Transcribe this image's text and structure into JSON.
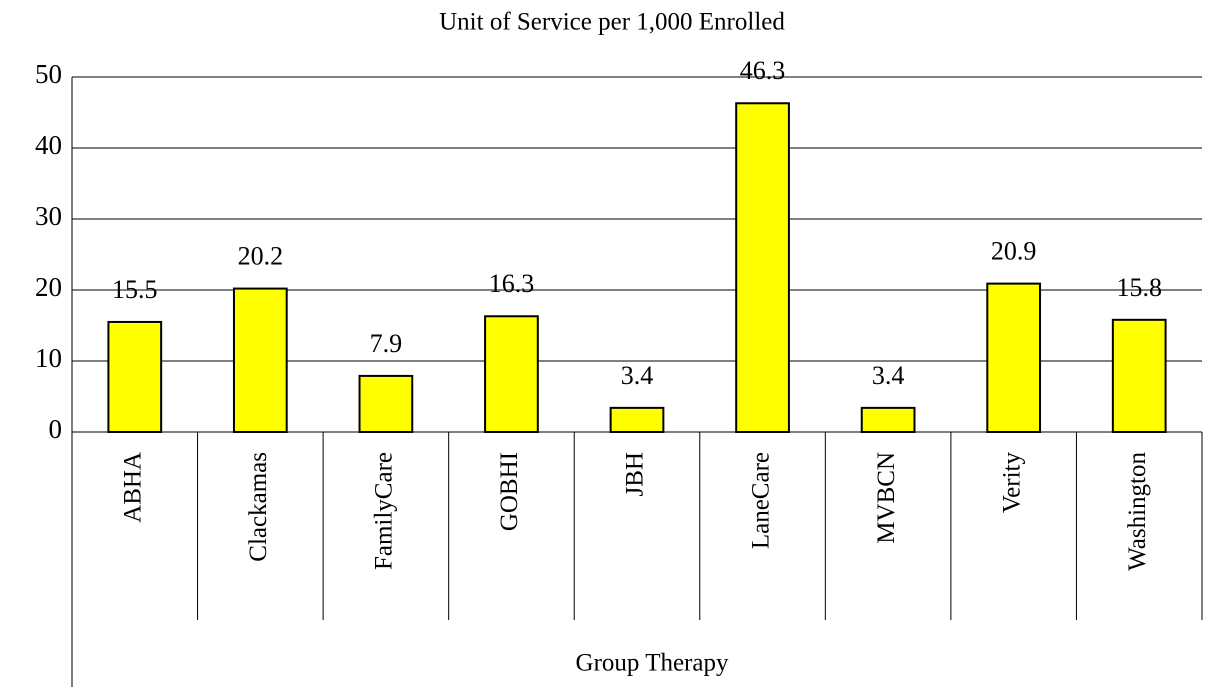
{
  "chart_data": {
    "type": "bar",
    "title": "Unit of Service per 1,000 Enrolled",
    "categories": [
      "ABHA",
      "Clackamas",
      "FamilyCare",
      "GOBHI",
      "JBH",
      "LaneCare",
      "MVBCN",
      "Verity",
      "Washington"
    ],
    "values": [
      15.5,
      20.2,
      7.9,
      16.3,
      3.4,
      46.3,
      3.4,
      20.9,
      15.8
    ],
    "color": "#ffff00",
    "x_group_label": "Group Therapy",
    "ylim": [
      0,
      50
    ],
    "yticks": [
      0,
      10,
      20,
      30,
      40,
      50
    ],
    "grid": true
  }
}
